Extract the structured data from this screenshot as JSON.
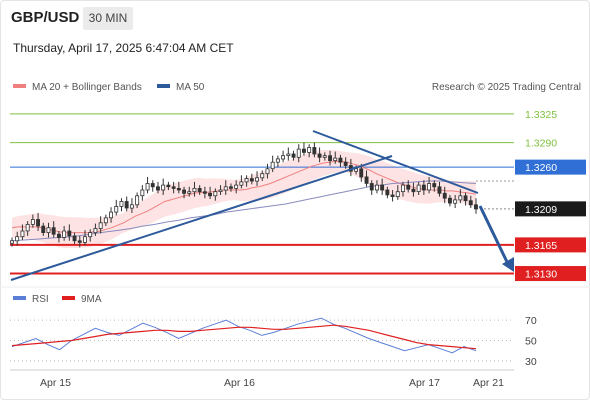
{
  "header": {
    "pair": "GBP/USD",
    "timeframe": "30 MIN",
    "datetime": "Thursday, April 17, 2025 6:47:04 AM CET",
    "credit": "Research © 2025 Trading Central"
  },
  "colors": {
    "resistance_green": "#7fbf3f",
    "pivot_blue": "#2f6fd6",
    "support_red": "#e02020",
    "ma50": "#2d5a9a",
    "bollinger_fill": "#fcd9d9",
    "rsi": "#5b7fd6",
    "rsi_ma": "#e02020",
    "arrow": "#2d5a9a"
  },
  "chart_data": [
    {
      "type": "candlestick",
      "title": "GBP/USD",
      "legend": [
        "MA 20 + Bollinger Bands",
        "MA 50"
      ],
      "legend_position": "top-left",
      "ylim": [
        1.3116,
        1.3342
      ],
      "x_ticks": [
        "Apr 15",
        "Apr 16",
        "Apr 17",
        "Apr 21"
      ],
      "levels": [
        {
          "label": "1.3325",
          "value": 1.3325,
          "kind": "resistance",
          "color": "#7fbf3f"
        },
        {
          "label": "1.3290",
          "value": 1.329,
          "kind": "resistance",
          "color": "#7fbf3f"
        },
        {
          "label": "1.3260",
          "value": 1.326,
          "kind": "pivot",
          "color": "#2f6fd6"
        },
        {
          "label": "1.3209",
          "value": 1.3209,
          "kind": "last",
          "color": "#222222"
        },
        {
          "label": "1.3165",
          "value": 1.3165,
          "kind": "support",
          "color": "#e02020"
        },
        {
          "label": "1.3130",
          "value": 1.313,
          "kind": "support",
          "color": "#e02020"
        }
      ],
      "close": [
        1.317,
        1.3175,
        1.3182,
        1.319,
        1.3196,
        1.3188,
        1.318,
        1.3186,
        1.3178,
        1.3174,
        1.3182,
        1.3176,
        1.317,
        1.3168,
        1.3175,
        1.318,
        1.3185,
        1.3192,
        1.3198,
        1.3205,
        1.3212,
        1.3218,
        1.321,
        1.3214,
        1.3225,
        1.3232,
        1.324,
        1.3236,
        1.3232,
        1.3238,
        1.3236,
        1.3234,
        1.3232,
        1.3228,
        1.323,
        1.3234,
        1.323,
        1.3228,
        1.3225,
        1.323,
        1.3232,
        1.3236,
        1.3234,
        1.3238,
        1.3242,
        1.3246,
        1.3243,
        1.3247,
        1.3252,
        1.3258,
        1.3266,
        1.327,
        1.3274,
        1.3276,
        1.3272,
        1.3282,
        1.3278,
        1.3284,
        1.3276,
        1.3272,
        1.3274,
        1.3268,
        1.3271,
        1.3266,
        1.3262,
        1.3255,
        1.3258,
        1.3248,
        1.324,
        1.3232,
        1.3238,
        1.3232,
        1.3226,
        1.3224,
        1.323,
        1.3238,
        1.3233,
        1.323,
        1.3238,
        1.3232,
        1.324,
        1.3236,
        1.3228,
        1.3222,
        1.3216,
        1.322,
        1.3225,
        1.3219,
        1.3214,
        1.3209
      ],
      "ma20": [
        1.3186,
        1.3187,
        1.3187,
        1.3187,
        1.3187,
        1.3186,
        1.3184,
        1.3183,
        1.3181,
        1.318,
        1.318,
        1.318,
        1.318,
        1.318,
        1.3181,
        1.3182,
        1.3184,
        1.3186,
        1.3189,
        1.3192,
        1.3196,
        1.32,
        1.3203,
        1.3206,
        1.321,
        1.3214,
        1.3218,
        1.322,
        1.3222,
        1.3224,
        1.3226,
        1.3228,
        1.3229,
        1.3229,
        1.323,
        1.3231,
        1.3232,
        1.3232,
        1.3232,
        1.3232,
        1.3233,
        1.3235,
        1.3236,
        1.3238,
        1.324,
        1.3243,
        1.3246,
        1.3249,
        1.3252,
        1.3255,
        1.3258,
        1.3261,
        1.3263,
        1.3265,
        1.3266,
        1.3267,
        1.3267,
        1.3266,
        1.3264,
        1.3262,
        1.3259,
        1.3256,
        1.3252,
        1.3249,
        1.3246,
        1.3243,
        1.324,
        1.3238,
        1.3236,
        1.3234,
        1.3233,
        1.3232,
        1.3232,
        1.3232,
        1.3231,
        1.3231,
        1.323,
        1.3229,
        1.3228,
        1.3227
      ],
      "ma50": [
        1.317,
        1.3171,
        1.3172,
        1.3173,
        1.3174,
        1.3175,
        1.3177,
        1.3179,
        1.3181,
        1.3183,
        1.3185,
        1.3188,
        1.319,
        1.3193,
        1.3195,
        1.3198,
        1.32,
        1.3202,
        1.3205,
        1.3207,
        1.3209,
        1.3211,
        1.3213,
        1.3215,
        1.3218,
        1.3221,
        1.3224,
        1.3227,
        1.323,
        1.3233,
        1.3236,
        1.3238,
        1.324,
        1.3241,
        1.3242,
        1.3243,
        1.3243,
        1.3242,
        1.3241,
        1.324
      ]
    },
    {
      "type": "line",
      "title": "RSI",
      "legend": [
        "RSI",
        "9MA"
      ],
      "ylim": [
        25,
        78
      ],
      "y_ticks": [
        "70",
        "50",
        "30"
      ],
      "series": [
        {
          "name": "RSI",
          "values": [
            44,
            48,
            52,
            46,
            41,
            50,
            56,
            62,
            58,
            55,
            61,
            67,
            63,
            58,
            52,
            57,
            62,
            66,
            70,
            64,
            60,
            55,
            58,
            62,
            66,
            69,
            72,
            66,
            62,
            57,
            52,
            48,
            44,
            40,
            43,
            46,
            42,
            38,
            44,
            40
          ]
        },
        {
          "name": "9MA",
          "values": [
            45,
            46,
            47,
            48,
            49,
            50,
            52,
            54,
            56,
            57,
            58,
            59,
            60,
            60,
            59,
            59,
            60,
            61,
            62,
            63,
            63,
            62,
            61,
            61,
            62,
            63,
            64,
            65,
            64,
            62,
            60,
            57,
            54,
            51,
            48,
            46,
            45,
            44,
            43,
            42
          ]
        }
      ]
    }
  ]
}
